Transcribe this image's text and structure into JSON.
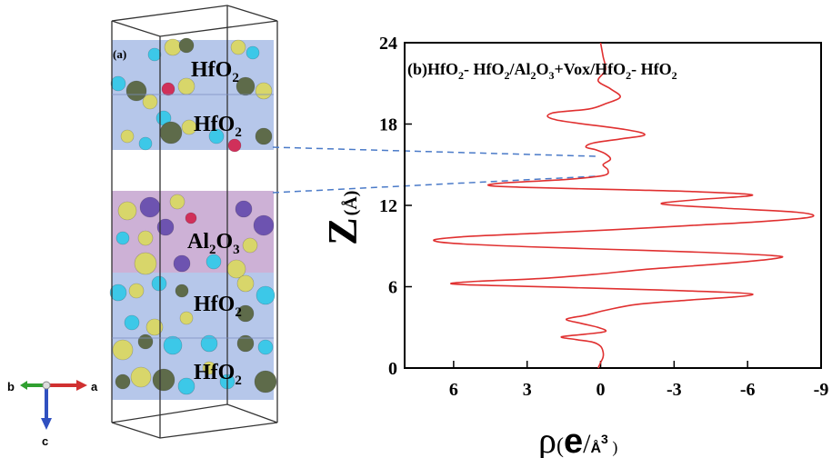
{
  "panel_a": {
    "label": "(a)",
    "layers": [
      {
        "name": "HfO",
        "sub": "2"
      },
      {
        "name": "HfO",
        "sub": "2"
      },
      {
        "name": "Al",
        "sub": "2",
        "name2": "O",
        "sub2": "3"
      },
      {
        "name": "HfO",
        "sub": "2"
      },
      {
        "name": "HfO",
        "sub": "2"
      }
    ],
    "axes_labels": {
      "a": "a",
      "b": "b",
      "c": "c"
    },
    "colors": {
      "hfo2_band": "#a9bde6",
      "al2o3_band": "#c8a9d2",
      "box_line": "#333333",
      "atom_yellow": "#d8d66a",
      "atom_cyan": "#3cc8e8",
      "atom_olive": "#5e6b4a",
      "atom_purple": "#6d53b0",
      "atom_magenta": "#d0305a",
      "axis_a": "#d03030",
      "axis_b": "#30a030",
      "axis_c": "#3050c0"
    }
  },
  "chart_data": {
    "type": "line",
    "title_parts": [
      {
        "t": "(b)HfO"
      },
      {
        "t": "2",
        "sub": true
      },
      {
        "t": "- HfO"
      },
      {
        "t": "2",
        "sub": true
      },
      {
        "t": "/Al"
      },
      {
        "t": "2",
        "sub": true
      },
      {
        "t": "O"
      },
      {
        "t": "3",
        "sub": true
      },
      {
        "t": "+Vox/HfO"
      },
      {
        "t": "2",
        "sub": true
      },
      {
        "t": "- HfO"
      },
      {
        "t": "2",
        "sub": true
      }
    ],
    "ylabel": {
      "main": "Z",
      "sub": "(Å)"
    },
    "xlabel": {
      "rho": "ρ",
      "open": "(",
      "e": "e",
      "slash": "/",
      "unit": "Å",
      "sup": "3",
      "close": " )"
    },
    "x_range": [
      8,
      -9
    ],
    "y_range": [
      0,
      24
    ],
    "x_ticks": [
      6,
      3,
      0,
      -3,
      -6,
      -9
    ],
    "y_ticks": [
      0,
      6,
      12,
      18,
      24
    ],
    "line_color": "#e03030",
    "dashed_color": "#4a7ac8",
    "grid": false,
    "series": [
      {
        "x": [
          0.1,
          0.0,
          -0.1,
          -0.1,
          0.0,
          0.3,
          1.0,
          1.6,
          0.6,
          -0.2,
          0.1,
          0.8,
          1.4,
          0.6,
          -0.3,
          -1.5,
          -3.5,
          -5.5,
          -6.2,
          -5.0,
          -2.5,
          -0.5,
          1.5,
          3.5,
          5.5,
          6.1,
          5.0,
          2.5,
          0.3,
          -2.0,
          -5.0,
          -7.2,
          -7.0,
          -4.0,
          -0.5,
          3.0,
          6.0,
          6.8,
          5.5,
          2.5,
          -0.5,
          -3.5,
          -6.5,
          -8.6,
          -8.0,
          -5.0,
          -2.5,
          -3.8,
          -6.2,
          -4.0,
          -1.0,
          2.5,
          4.5,
          4.0,
          1.5,
          -0.1,
          -0.3,
          -0.1,
          -0.4,
          -0.2,
          0.2,
          0.6,
          0.3,
          -0.8,
          -1.8,
          -1.0,
          1.8,
          2.0,
          0.5,
          -0.2,
          -0.8,
          -0.4,
          0.1,
          -0.2,
          -0.1,
          0.0
        ],
        "y": [
          0.0,
          0.4,
          0.8,
          1.2,
          1.6,
          1.9,
          2.1,
          2.3,
          2.5,
          2.7,
          3.0,
          3.3,
          3.6,
          3.9,
          4.3,
          4.7,
          5.0,
          5.25,
          5.45,
          5.6,
          5.75,
          5.85,
          5.95,
          6.05,
          6.15,
          6.25,
          6.4,
          6.6,
          6.9,
          7.3,
          7.7,
          8.1,
          8.3,
          8.55,
          8.75,
          8.95,
          9.2,
          9.45,
          9.7,
          9.95,
          10.2,
          10.5,
          10.8,
          11.15,
          11.5,
          11.8,
          12.1,
          12.4,
          12.75,
          13.0,
          13.15,
          13.3,
          13.45,
          13.65,
          13.9,
          14.2,
          14.6,
          15.0,
          15.4,
          15.8,
          16.1,
          16.3,
          16.6,
          16.9,
          17.2,
          17.6,
          18.3,
          18.8,
          19.1,
          19.5,
          20.0,
          20.6,
          21.2,
          22.0,
          23.0,
          24.0
        ]
      }
    ]
  }
}
